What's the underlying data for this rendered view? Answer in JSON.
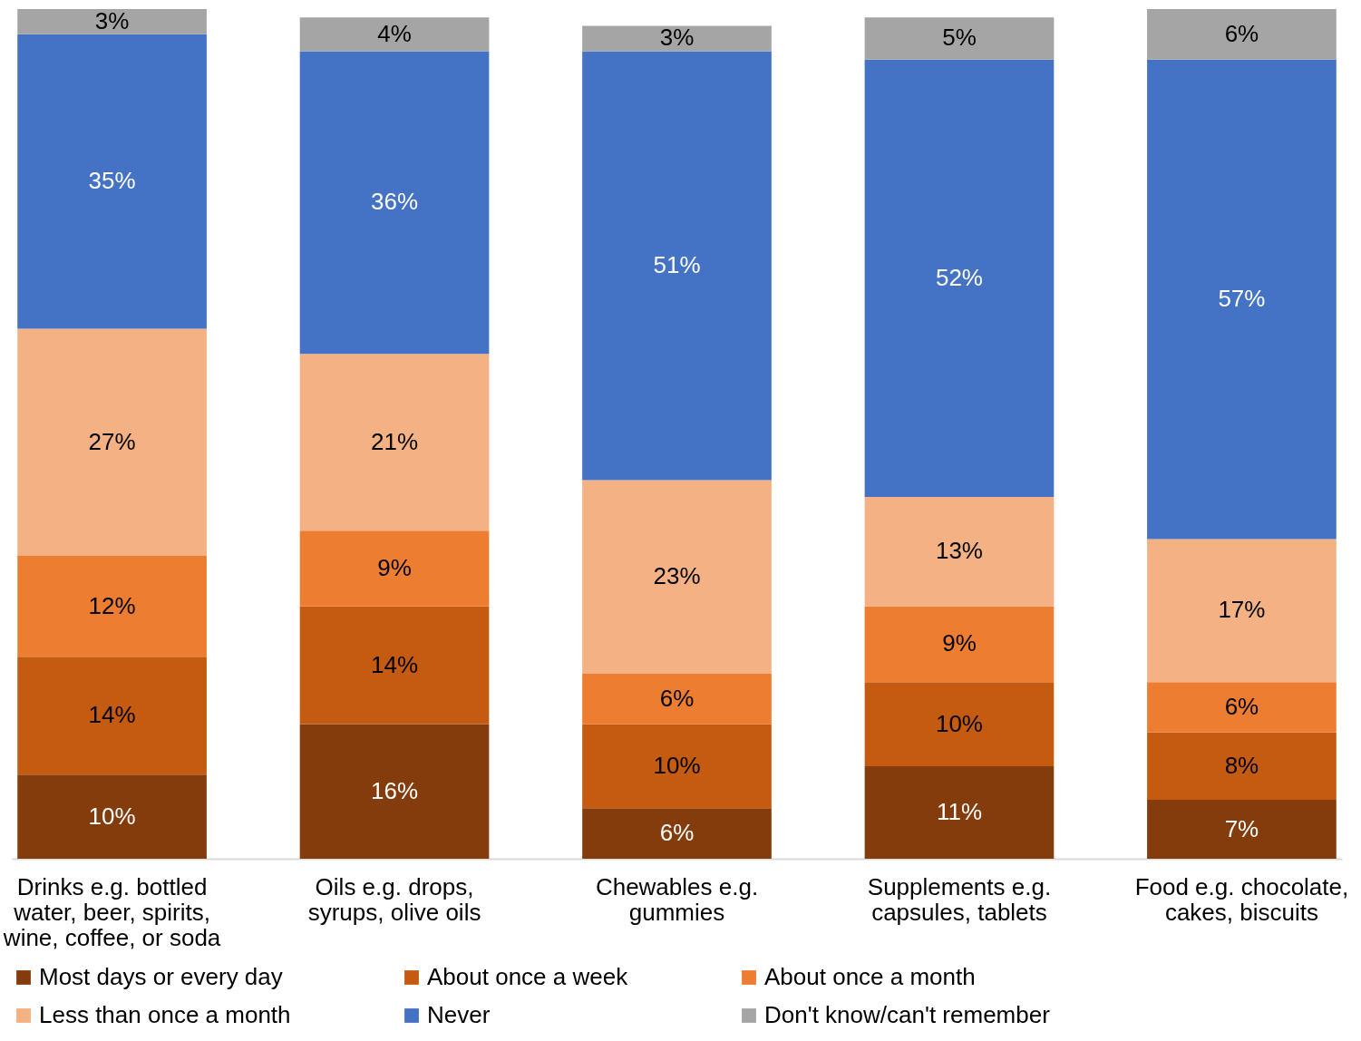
{
  "chart_data": {
    "type": "bar",
    "stacked": true,
    "grid": false,
    "legend": "bottom",
    "tick_labels": "x",
    "categories": [
      "Drinks e.g. bottled water, beer, spirits, wine, coffee, or soda",
      "Oils e.g. drops, syrups, olive oils",
      "Chewables e.g. gummies",
      "Supplements e.g. capsules, tablets",
      "Food e.g. chocolate, cakes, biscuits"
    ],
    "series": [
      {
        "name": "Most days or every day",
        "color": "#843c0c",
        "values": [
          10,
          16,
          6,
          11,
          7
        ],
        "value_labels": [
          "10%",
          "16%",
          "6%",
          "11%",
          "7%"
        ]
      },
      {
        "name": "About once a week",
        "color": "#c55a11",
        "values": [
          14,
          14,
          10,
          10,
          8
        ],
        "value_labels": [
          "14%",
          "14%",
          "10%",
          "10%",
          "8%"
        ]
      },
      {
        "name": "About once a month",
        "color": "#ed7d31",
        "values": [
          12,
          9,
          6,
          9,
          6
        ],
        "value_labels": [
          "12%",
          "9%",
          "6%",
          "9%",
          "6%"
        ]
      },
      {
        "name": "Less than once a month",
        "color": "#f4b183",
        "values": [
          27,
          21,
          23,
          13,
          17
        ],
        "value_labels": [
          "27%",
          "21%",
          "23%",
          "13%",
          "17%"
        ]
      },
      {
        "name": "Never",
        "color": "#4472c4",
        "values": [
          35,
          36,
          51,
          52,
          57
        ],
        "value_labels": [
          "35%",
          "36%",
          "51%",
          "52%",
          "57%"
        ]
      },
      {
        "name": "Don't know/can't remember",
        "color": "#a5a5a5",
        "values": [
          3,
          4,
          3,
          5,
          6
        ],
        "value_labels": [
          "3%",
          "4%",
          "3%",
          "5%",
          "6%"
        ]
      }
    ]
  }
}
